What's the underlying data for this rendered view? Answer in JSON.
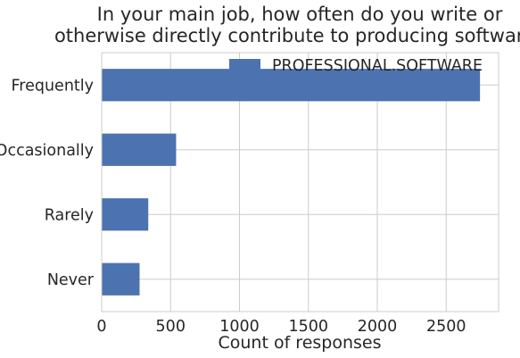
{
  "chart_data": {
    "type": "bar",
    "orientation": "horizontal",
    "title_lines": [
      "In your main job, how often do you write or",
      "otherwise directly contribute to producing software?"
    ],
    "xlabel": "Count of responses",
    "ylabel": "",
    "categories": [
      "Never",
      "Rarely",
      "Occasionally",
      "Frequently"
    ],
    "series": [
      {
        "name": "PROFESSIONAL.SOFTWARE",
        "values": [
          275,
          338,
          540,
          2745
        ],
        "color": "#4c72b0"
      }
    ],
    "xlim": [
      0,
      2880
    ],
    "xticks": [
      0,
      500,
      1000,
      1500,
      2000,
      2500
    ],
    "grid": true,
    "legend_position": "top-right"
  }
}
